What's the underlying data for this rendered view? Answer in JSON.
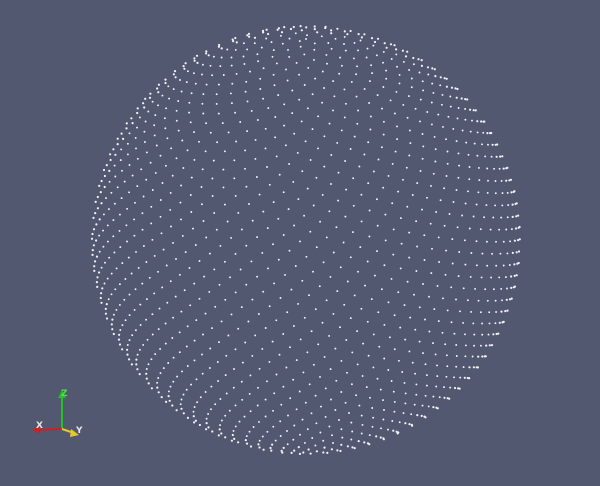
{
  "view": {
    "background": "#525870",
    "point_color": "#f2f3f8",
    "content": "sphere-point-cloud"
  },
  "axes_widget": {
    "z_label": "Z",
    "x_label": "X",
    "y_label": "Y",
    "z_color": "#23c123",
    "x_color": "#d11f1f",
    "y_color": "#e5c92a"
  }
}
